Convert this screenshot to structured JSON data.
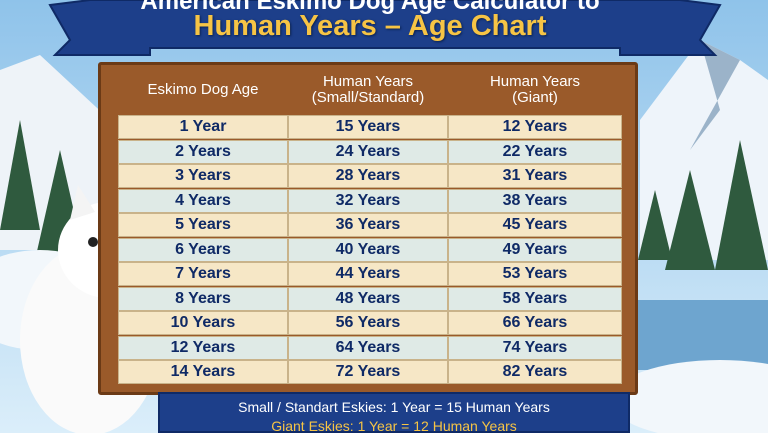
{
  "header": {
    "title_line1": "American Eskimo Dog Age Calculator to",
    "title_line2": "Human Years – Age Chart"
  },
  "table": {
    "columns": [
      "Eskimo Dog Age",
      "Human Years (Small/Standard)",
      "Human Years (Giant)"
    ],
    "rows": [
      [
        "1 Year",
        "15 Years",
        "12 Years"
      ],
      [
        "2 Years",
        "24 Years",
        "22 Years"
      ],
      [
        "3 Years",
        "28 Years",
        "31 Years"
      ],
      [
        "4 Years",
        "32 Years",
        "38 Years"
      ],
      [
        "5 Years",
        "36 Years",
        "45 Years"
      ],
      [
        "6 Years",
        "40 Years",
        "49 Years"
      ],
      [
        "7 Years",
        "44 Years",
        "53 Years"
      ],
      [
        "8 Years",
        "48 Years",
        "58 Years"
      ],
      [
        "10 Years",
        "56 Years",
        "66 Years"
      ],
      [
        "12 Years",
        "64 Years",
        "74 Years"
      ],
      [
        "14 Years",
        "72 Years",
        "82 Years"
      ]
    ]
  },
  "footer": {
    "line1": "Small / Standart Eskies:  1 Year = 15 Human Years",
    "line2": "Giant Eskies:  1 Year = 12 Human Years"
  }
}
